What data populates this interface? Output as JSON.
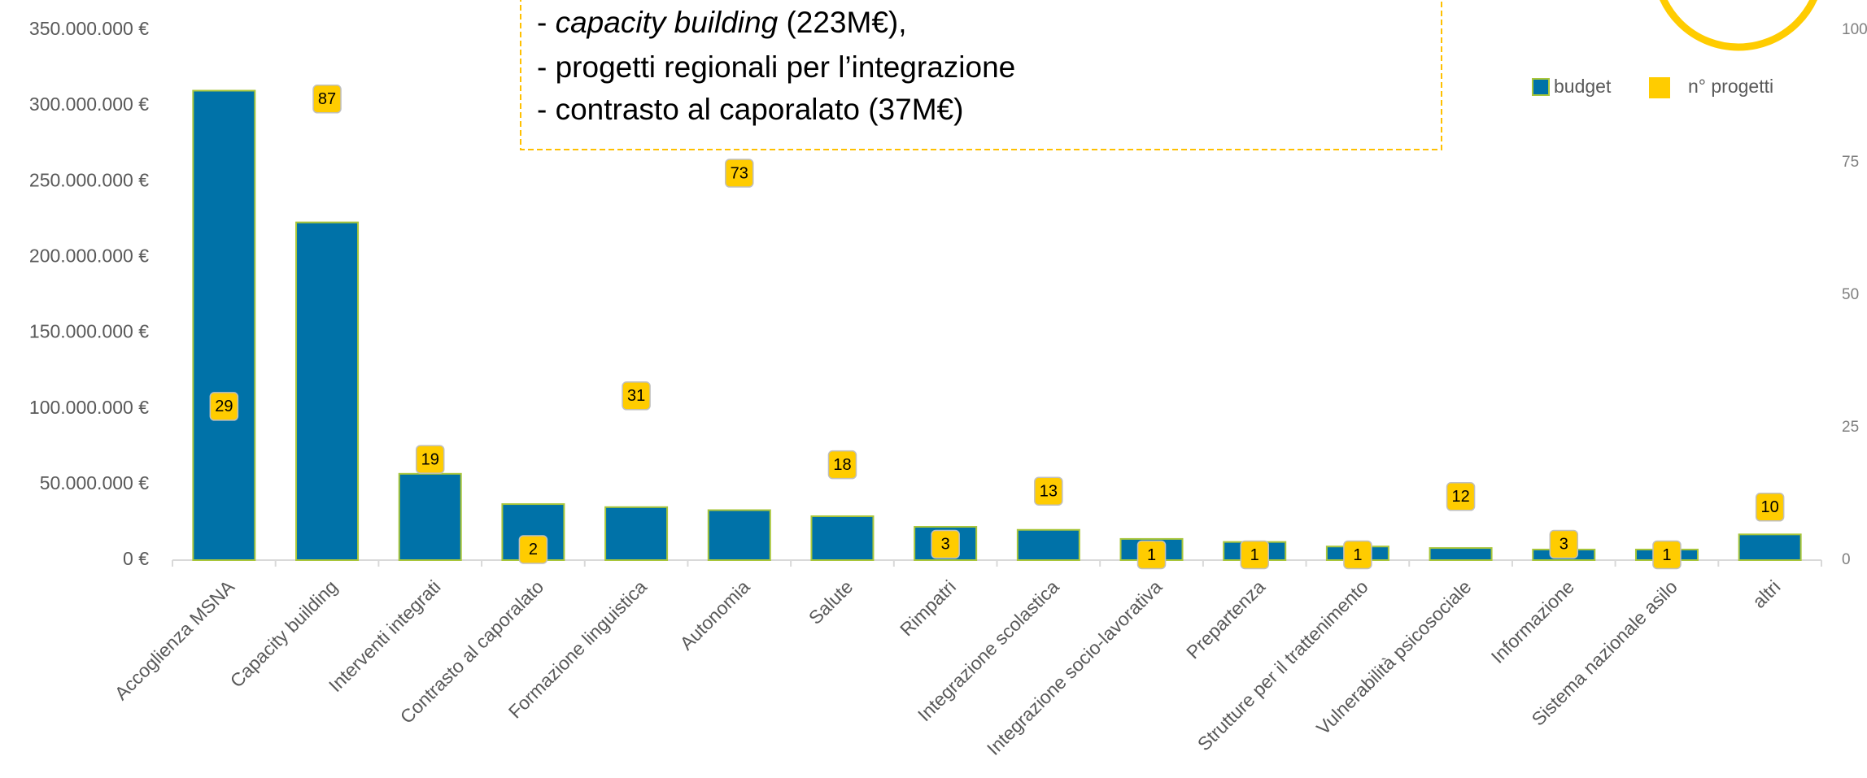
{
  "chart_data": {
    "type": "bar",
    "annotation": [
      [
        "- ",
        "capacity building",
        " (223M€),"
      ],
      [
        "- progetti regionali per l’integrazione"
      ],
      [
        "- contrasto al caporalato (37M€)"
      ]
    ],
    "categories": [
      "Accoglienza MSNA",
      "Capacity building",
      "Interventi integrati",
      "Contrasto al caporalato",
      "Formazione linguistica",
      "Autonomia",
      "Salute",
      "Rimpatri",
      "Integrazione scolastica",
      "Integrazione socio-lavorativa",
      "Prepartenza",
      "Strutture per il trattenimento",
      "Vulnerabilità psicosociale",
      "Informazione",
      "Sistema nazionale asilo",
      "altri"
    ],
    "series": [
      {
        "name": "budget",
        "color": "#0072a8",
        "values": [
          310000000,
          223000000,
          57000000,
          37000000,
          35000000,
          33000000,
          29000000,
          22000000,
          20000000,
          14000000,
          12000000,
          9000000,
          8000000,
          7000000,
          7000000,
          17000000
        ]
      },
      {
        "name": "n° progetti",
        "color": "#ffcc00",
        "axis": "y2",
        "values": [
          29,
          87,
          19,
          2,
          31,
          73,
          18,
          3,
          13,
          1,
          1,
          1,
          12,
          3,
          1,
          10
        ]
      }
    ],
    "ylim": [
      0,
      350000000
    ],
    "yticks": [
      {
        "value": 0,
        "label": "0 €"
      },
      {
        "value": 50000000,
        "label": "50.000.000 €"
      },
      {
        "value": 100000000,
        "label": "100.000.000 €"
      },
      {
        "value": 150000000,
        "label": "150.000.000 €"
      },
      {
        "value": 200000000,
        "label": "200.000.000 €"
      },
      {
        "value": 250000000,
        "label": "250.000.000 €"
      },
      {
        "value": 300000000,
        "label": "300.000.000 €"
      },
      {
        "value": 350000000,
        "label": "350.000.000 €"
      }
    ],
    "y2lim": [
      0,
      100
    ],
    "y2ticks": [
      0,
      25,
      50,
      75,
      100
    ],
    "legend": "top-right"
  }
}
